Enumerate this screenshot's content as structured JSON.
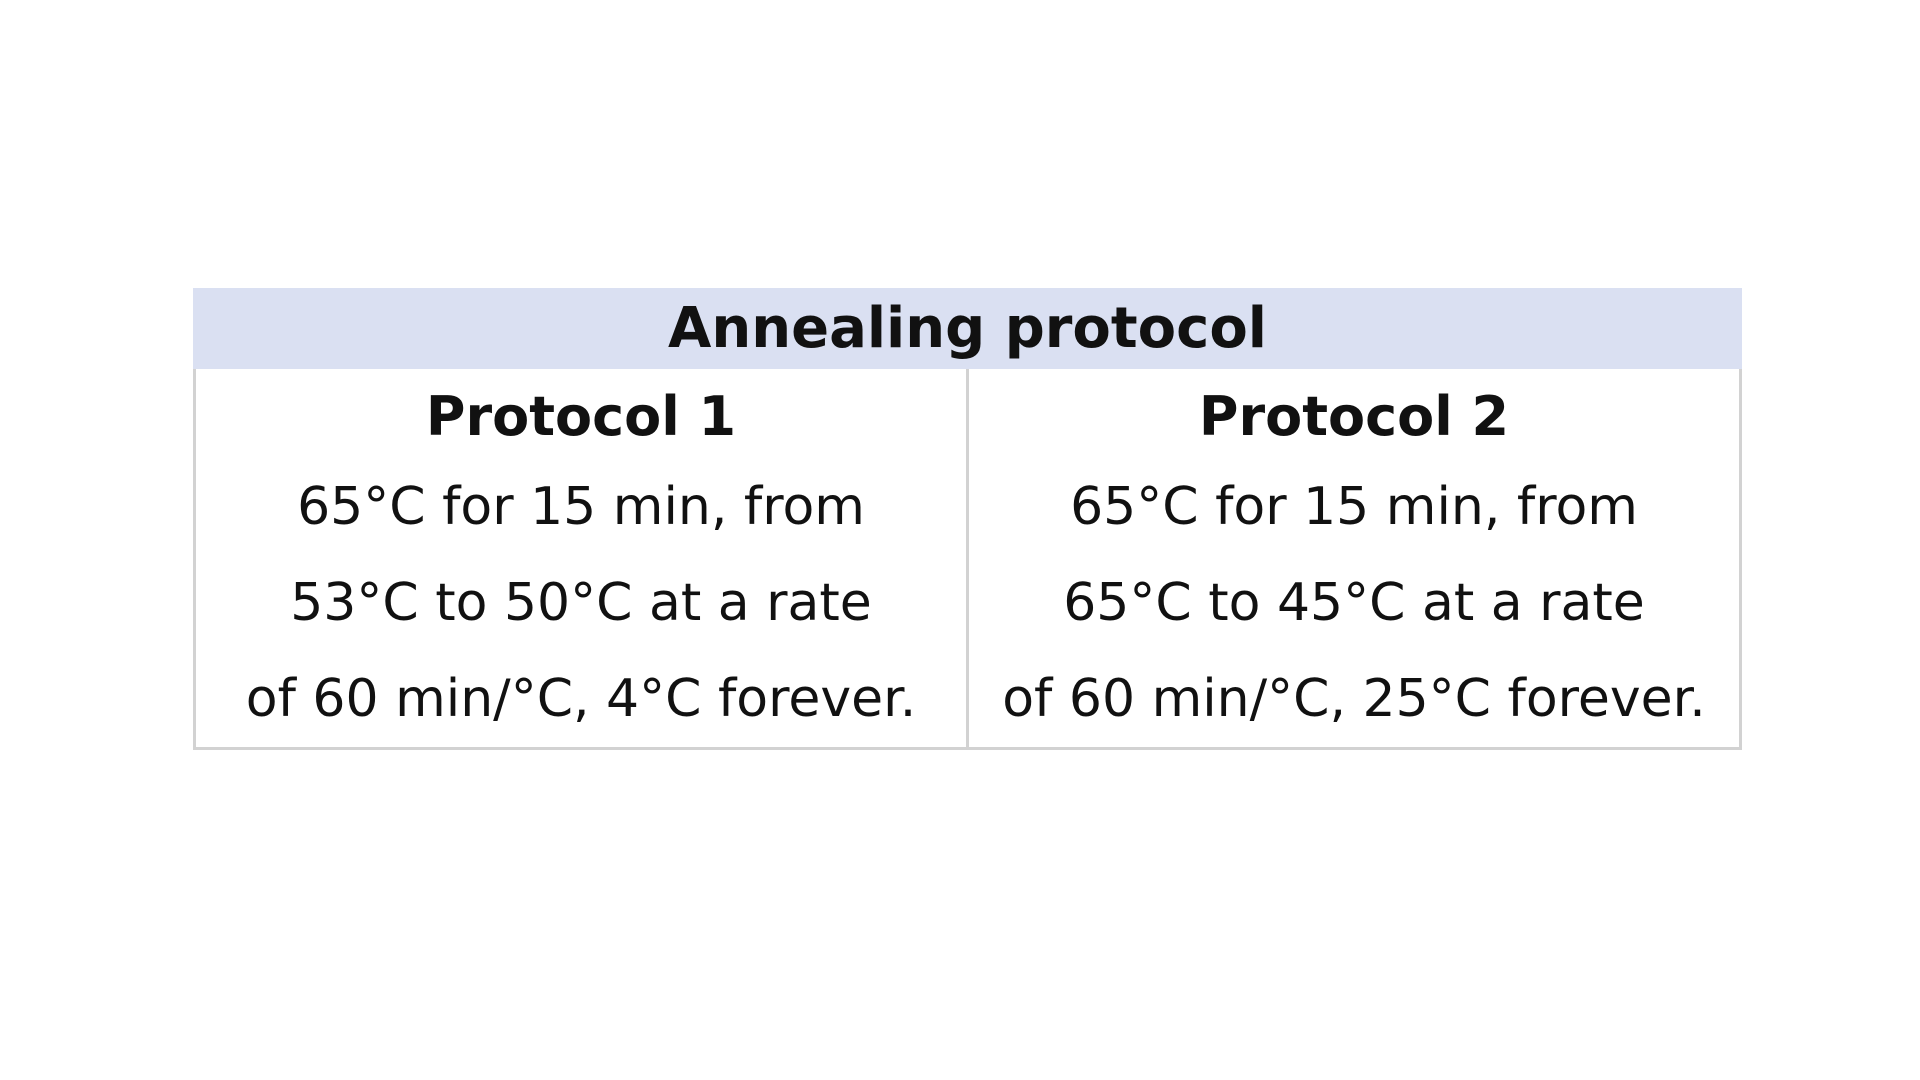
{
  "table": {
    "header": "Annealing protocol",
    "columns": [
      {
        "title": "Protocol 1",
        "lines": [
          "65°C for 15 min, from",
          "53°C to 50°C at a rate",
          "of 60 min/°C, 4°C forever."
        ]
      },
      {
        "title": "Protocol 2",
        "lines": [
          "65°C for 15 min, from",
          "65°C to 45°C at a rate",
          "of 60 min/°C, 25°C forever."
        ]
      }
    ]
  },
  "colors": {
    "header_background": "#dae0f2",
    "border": "#d2d2d2",
    "text": "#111111"
  }
}
